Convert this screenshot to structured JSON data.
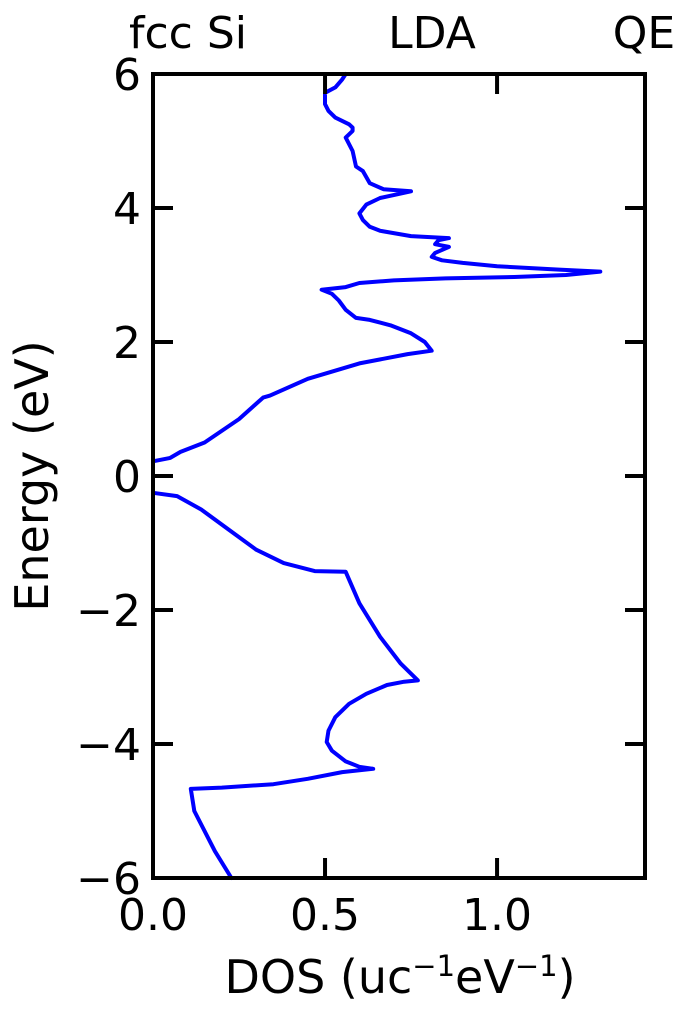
{
  "chart_data": {
    "type": "line",
    "title_left": "fcc Si",
    "title_center": "LDA",
    "title_right": "QE",
    "xlabel": {
      "prefix": "DOS (uc",
      "sup1": "−1",
      "middle": "eV",
      "sup2": "−1",
      "suffix": ")"
    },
    "ylabel": "Energy (eV)",
    "xlim": [
      0.0,
      1.43
    ],
    "ylim": [
      -6,
      6
    ],
    "xticks": [
      0.0,
      0.5,
      1.0
    ],
    "xtick_labels": [
      "0.0",
      "0.5",
      "1.0"
    ],
    "yticks": [
      -6,
      -4,
      -2,
      0,
      2,
      4,
      6
    ],
    "ytick_labels": [
      "−6",
      "−4",
      "−2",
      "0",
      "2",
      "4",
      "6"
    ],
    "line_color": "#0000ff",
    "axis_color": "#000000",
    "series": [
      {
        "values": [
          [
            0.228,
            -6.0
          ],
          [
            0.18,
            -5.6
          ],
          [
            0.12,
            -5.0
          ],
          [
            0.11,
            -4.67
          ],
          [
            0.2,
            -4.65
          ],
          [
            0.35,
            -4.6
          ],
          [
            0.45,
            -4.52
          ],
          [
            0.55,
            -4.42
          ],
          [
            0.64,
            -4.37
          ],
          [
            0.6,
            -4.34
          ],
          [
            0.56,
            -4.26
          ],
          [
            0.52,
            -4.1
          ],
          [
            0.505,
            -3.97
          ],
          [
            0.51,
            -3.8
          ],
          [
            0.53,
            -3.6
          ],
          [
            0.57,
            -3.4
          ],
          [
            0.62,
            -3.25
          ],
          [
            0.68,
            -3.12
          ],
          [
            0.73,
            -3.07
          ],
          [
            0.77,
            -3.05
          ],
          [
            0.72,
            -2.8
          ],
          [
            0.66,
            -2.4
          ],
          [
            0.6,
            -1.9
          ],
          [
            0.56,
            -1.43
          ],
          [
            0.47,
            -1.42
          ],
          [
            0.38,
            -1.3
          ],
          [
            0.3,
            -1.1
          ],
          [
            0.22,
            -0.8
          ],
          [
            0.14,
            -0.5
          ],
          [
            0.07,
            -0.3
          ],
          [
            0.0,
            -0.25
          ]
        ]
      },
      {
        "values": [
          [
            0.0,
            0.22
          ],
          [
            0.05,
            0.27
          ],
          [
            0.08,
            0.36
          ],
          [
            0.15,
            0.5
          ],
          [
            0.25,
            0.85
          ],
          [
            0.32,
            1.17
          ],
          [
            0.34,
            1.2
          ],
          [
            0.45,
            1.45
          ],
          [
            0.6,
            1.68
          ],
          [
            0.74,
            1.82
          ],
          [
            0.81,
            1.87
          ],
          [
            0.79,
            2.0
          ],
          [
            0.75,
            2.13
          ],
          [
            0.69,
            2.25
          ],
          [
            0.63,
            2.33
          ],
          [
            0.59,
            2.36
          ],
          [
            0.56,
            2.48
          ],
          [
            0.54,
            2.62
          ],
          [
            0.52,
            2.72
          ],
          [
            0.49,
            2.78
          ],
          [
            0.56,
            2.82
          ],
          [
            0.6,
            2.88
          ],
          [
            0.7,
            2.92
          ],
          [
            0.85,
            2.95
          ],
          [
            1.05,
            2.97
          ],
          [
            1.2,
            3.0
          ],
          [
            1.3,
            3.05
          ],
          [
            1.18,
            3.08
          ],
          [
            1.0,
            3.13
          ],
          [
            0.9,
            3.18
          ],
          [
            0.84,
            3.22
          ],
          [
            0.81,
            3.27
          ],
          [
            0.82,
            3.33
          ],
          [
            0.86,
            3.42
          ],
          [
            0.82,
            3.46
          ],
          [
            0.83,
            3.52
          ],
          [
            0.86,
            3.55
          ],
          [
            0.75,
            3.58
          ],
          [
            0.66,
            3.66
          ],
          [
            0.63,
            3.72
          ],
          [
            0.61,
            3.82
          ],
          [
            0.6,
            3.92
          ],
          [
            0.62,
            4.05
          ],
          [
            0.66,
            4.15
          ],
          [
            0.75,
            4.25
          ],
          [
            0.67,
            4.28
          ],
          [
            0.63,
            4.37
          ],
          [
            0.61,
            4.55
          ],
          [
            0.59,
            4.62
          ],
          [
            0.58,
            4.85
          ],
          [
            0.56,
            5.05
          ],
          [
            0.58,
            5.15
          ],
          [
            0.58,
            5.2
          ],
          [
            0.57,
            5.25
          ],
          [
            0.55,
            5.3
          ],
          [
            0.53,
            5.35
          ],
          [
            0.51,
            5.45
          ],
          [
            0.5,
            5.55
          ],
          [
            0.5,
            5.65
          ],
          [
            0.5,
            5.72
          ],
          [
            0.53,
            5.8
          ],
          [
            0.55,
            5.92
          ],
          [
            0.56,
            6.0
          ]
        ]
      }
    ]
  }
}
